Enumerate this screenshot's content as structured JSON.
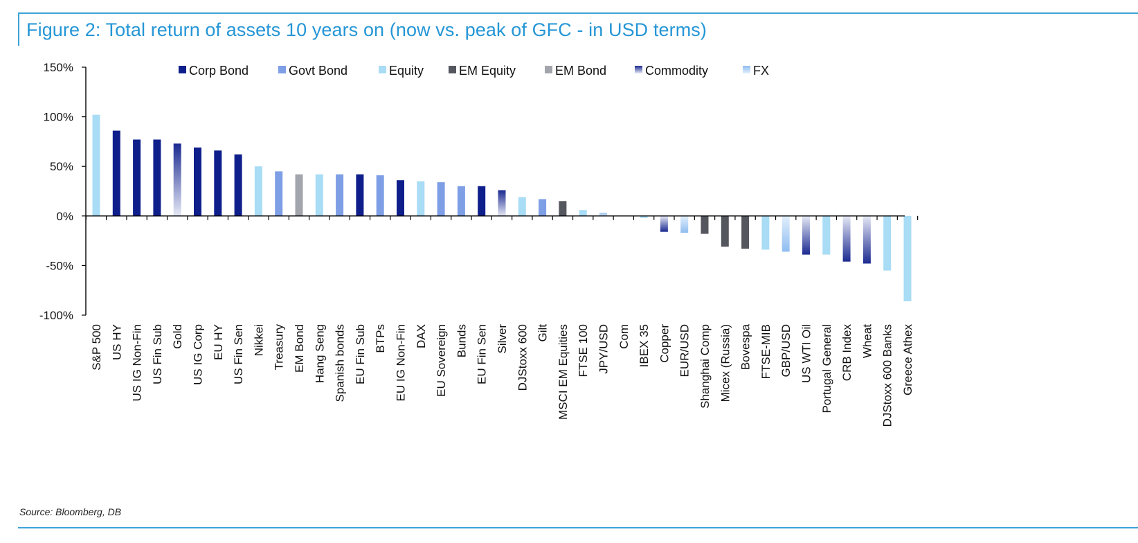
{
  "title": "Figure 2: Total return of assets 10 years on (now vs. peak of GFC - in USD terms)",
  "source": "Source: Bloomberg, DB",
  "colors": {
    "frame": "#3da3d8",
    "title": "#2596d6",
    "Corp Bond": "#0e1f8c",
    "Govt Bond": "#7e9ee6",
    "Equity": "#a9dcf5",
    "EM Equity": "#55575f",
    "EM Bond": "#a3a5ad",
    "Commodity": "#1b2a90",
    "Commodity_light": "#e6e9f6",
    "FX": "#8fbdf0",
    "FX_light": "#e2effc"
  },
  "chart_data": {
    "type": "bar",
    "title": "Figure 2: Total return of assets 10 years on (now vs. peak of GFC - in USD terms)",
    "xlabel": "",
    "ylabel": "",
    "ylim": [
      -100,
      150
    ],
    "yticks": [
      150,
      100,
      50,
      0,
      -50,
      -100
    ],
    "ytick_labels": [
      "150%",
      "100%",
      "50%",
      "0%",
      "-50%",
      "-100%"
    ],
    "legend": [
      "Corp Bond",
      "Govt Bond",
      "Equity",
      "EM Equity",
      "EM Bond",
      "Commodity",
      "FX"
    ],
    "legend_position": "top",
    "categories": [
      "S&P 500",
      "US HY",
      "US IG Non-Fin",
      "US Fin Sub",
      "Gold",
      "US IG Corp",
      "EU HY",
      "US Fin Sen",
      "Nikkei",
      "Treasury",
      "EM Bond",
      "Hang Seng",
      "Spanish bonds",
      "EU Fin Sub",
      "BTPs",
      "EU IG Non-Fin",
      "DAX",
      "EU Sovereign",
      "Bunds",
      "EU Fin Sen",
      "Silver",
      "DJStoxx 600",
      "Gilt",
      "MSCI EM Equities",
      "FTSE 100",
      "JPY/USD",
      "Com",
      "IBEX 35",
      "Copper",
      "EUR/USD",
      "Shanghai Comp",
      "Micex (Russia)",
      "Bovespa",
      "FTSE-MIB",
      "GBP/USD",
      "US WTI Oil",
      "Portugal General",
      "CRB Index",
      "Wheat",
      "DJStoxx 600 Banks",
      "Greece Athex"
    ],
    "values": [
      102,
      86,
      77,
      77,
      73,
      69,
      66,
      62,
      50,
      45,
      42,
      42,
      42,
      42,
      41,
      36,
      35,
      34,
      30,
      30,
      26,
      19,
      17,
      15,
      6,
      3,
      0,
      -2,
      -16,
      -17,
      -18,
      -31,
      -33,
      -34,
      -36,
      -39,
      -39,
      -46,
      -48,
      -55,
      -86
    ],
    "asset_class": [
      "Equity",
      "Corp Bond",
      "Corp Bond",
      "Corp Bond",
      "Commodity",
      "Corp Bond",
      "Corp Bond",
      "Corp Bond",
      "Equity",
      "Govt Bond",
      "EM Bond",
      "Equity",
      "Govt Bond",
      "Corp Bond",
      "Govt Bond",
      "Corp Bond",
      "Equity",
      "Govt Bond",
      "Govt Bond",
      "Corp Bond",
      "Commodity",
      "Equity",
      "Govt Bond",
      "EM Equity",
      "Equity",
      "FX",
      "Commodity",
      "Equity",
      "Commodity",
      "FX",
      "EM Equity",
      "EM Equity",
      "EM Equity",
      "Equity",
      "FX",
      "Commodity",
      "Equity",
      "Commodity",
      "Commodity",
      "Equity",
      "Equity"
    ]
  }
}
